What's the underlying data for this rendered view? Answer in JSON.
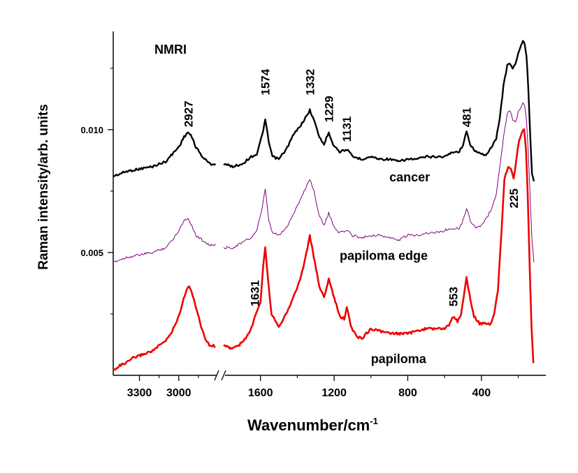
{
  "chart_data": {
    "type": "line",
    "title": "NMRI",
    "xlabel": "Wavenumber/cm",
    "xlabel_sup": "-1",
    "ylabel": "Raman intensity/arb. units",
    "axis_break": true,
    "x_reversed": true,
    "xlim_left": [
      3500,
      2700
    ],
    "xlim_right": [
      1800,
      50
    ],
    "ylim": [
      0.0,
      0.014
    ],
    "yticks": [
      {
        "value": 0.005,
        "label": "0.005"
      },
      {
        "value": 0.01,
        "label": "0.010"
      }
    ],
    "xticks": [
      {
        "value": 3300,
        "label": "3300"
      },
      {
        "value": 3000,
        "label": "3000"
      },
      {
        "value": 1600,
        "label": "1600"
      },
      {
        "value": 1200,
        "label": "1200"
      },
      {
        "value": 800,
        "label": "800"
      },
      {
        "value": 400,
        "label": "400"
      }
    ],
    "series": [
      {
        "name": "cancer",
        "color": "#000000",
        "points": [
          [
            3500,
            0.0081
          ],
          [
            3400,
            0.0083
          ],
          [
            3300,
            0.0084
          ],
          [
            3200,
            0.0085
          ],
          [
            3100,
            0.0087
          ],
          [
            3050,
            0.009
          ],
          [
            3000,
            0.0093
          ],
          [
            2960,
            0.0097
          ],
          [
            2930,
            0.0099
          ],
          [
            2900,
            0.0097
          ],
          [
            2870,
            0.0093
          ],
          [
            2820,
            0.0089
          ],
          [
            2760,
            0.0086
          ],
          [
            2720,
            0.0086
          ],
          [
            1800,
            0.0086
          ],
          [
            1750,
            0.0085
          ],
          [
            1700,
            0.0086
          ],
          [
            1650,
            0.0089
          ],
          [
            1620,
            0.009
          ],
          [
            1590,
            0.0098
          ],
          [
            1574,
            0.0104
          ],
          [
            1555,
            0.0095
          ],
          [
            1535,
            0.0089
          ],
          [
            1500,
            0.0088
          ],
          [
            1460,
            0.0092
          ],
          [
            1420,
            0.0098
          ],
          [
            1380,
            0.0102
          ],
          [
            1345,
            0.0106
          ],
          [
            1332,
            0.0108
          ],
          [
            1310,
            0.0104
          ],
          [
            1280,
            0.0097
          ],
          [
            1255,
            0.0094
          ],
          [
            1229,
            0.0099
          ],
          [
            1205,
            0.0094
          ],
          [
            1170,
            0.0091
          ],
          [
            1131,
            0.0092
          ],
          [
            1100,
            0.0089
          ],
          [
            1050,
            0.0088
          ],
          [
            1000,
            0.0089
          ],
          [
            950,
            0.0088
          ],
          [
            900,
            0.0088
          ],
          [
            850,
            0.0087
          ],
          [
            800,
            0.0088
          ],
          [
            750,
            0.0088
          ],
          [
            700,
            0.0089
          ],
          [
            650,
            0.0089
          ],
          [
            600,
            0.0089
          ],
          [
            553,
            0.0091
          ],
          [
            520,
            0.0091
          ],
          [
            500,
            0.0094
          ],
          [
            481,
            0.0099
          ],
          [
            460,
            0.0094
          ],
          [
            430,
            0.0091
          ],
          [
            400,
            0.009
          ],
          [
            370,
            0.009
          ],
          [
            345,
            0.0093
          ],
          [
            320,
            0.0096
          ],
          [
            300,
            0.0105
          ],
          [
            280,
            0.0118
          ],
          [
            260,
            0.0126
          ],
          [
            245,
            0.0127
          ],
          [
            230,
            0.0125
          ],
          [
            215,
            0.0127
          ],
          [
            200,
            0.0131
          ],
          [
            185,
            0.0134
          ],
          [
            175,
            0.0136
          ],
          [
            165,
            0.0135
          ],
          [
            155,
            0.013
          ],
          [
            145,
            0.0116
          ],
          [
            135,
            0.0098
          ],
          [
            125,
            0.0082
          ],
          [
            115,
            0.0079
          ]
        ]
      },
      {
        "name": "papiloma edge",
        "color": "#800080",
        "points": [
          [
            3500,
            0.0046
          ],
          [
            3400,
            0.0048
          ],
          [
            3300,
            0.0049
          ],
          [
            3200,
            0.005
          ],
          [
            3100,
            0.0052
          ],
          [
            3050,
            0.0055
          ],
          [
            3000,
            0.0059
          ],
          [
            2960,
            0.0063
          ],
          [
            2930,
            0.0064
          ],
          [
            2900,
            0.0061
          ],
          [
            2870,
            0.0057
          ],
          [
            2820,
            0.0055
          ],
          [
            2760,
            0.0053
          ],
          [
            2720,
            0.0053
          ],
          [
            1800,
            0.0052
          ],
          [
            1750,
            0.0052
          ],
          [
            1700,
            0.0054
          ],
          [
            1650,
            0.0056
          ],
          [
            1620,
            0.0059
          ],
          [
            1590,
            0.0068
          ],
          [
            1574,
            0.0076
          ],
          [
            1555,
            0.0063
          ],
          [
            1535,
            0.0058
          ],
          [
            1500,
            0.0057
          ],
          [
            1460,
            0.006
          ],
          [
            1420,
            0.0066
          ],
          [
            1380,
            0.0072
          ],
          [
            1345,
            0.0078
          ],
          [
            1332,
            0.008
          ],
          [
            1310,
            0.0075
          ],
          [
            1280,
            0.0065
          ],
          [
            1255,
            0.0061
          ],
          [
            1229,
            0.0066
          ],
          [
            1205,
            0.0061
          ],
          [
            1170,
            0.0058
          ],
          [
            1131,
            0.0059
          ],
          [
            1100,
            0.0057
          ],
          [
            1050,
            0.0056
          ],
          [
            1000,
            0.0057
          ],
          [
            950,
            0.0057
          ],
          [
            900,
            0.0056
          ],
          [
            850,
            0.0055
          ],
          [
            800,
            0.0057
          ],
          [
            750,
            0.0057
          ],
          [
            700,
            0.0058
          ],
          [
            650,
            0.0058
          ],
          [
            600,
            0.0059
          ],
          [
            553,
            0.006
          ],
          [
            520,
            0.006
          ],
          [
            500,
            0.0063
          ],
          [
            481,
            0.0068
          ],
          [
            460,
            0.0063
          ],
          [
            430,
            0.006
          ],
          [
            400,
            0.0061
          ],
          [
            370,
            0.0064
          ],
          [
            345,
            0.0068
          ],
          [
            320,
            0.0073
          ],
          [
            300,
            0.0085
          ],
          [
            280,
            0.0097
          ],
          [
            260,
            0.0106
          ],
          [
            245,
            0.0108
          ],
          [
            230,
            0.0104
          ],
          [
            215,
            0.0103
          ],
          [
            200,
            0.0107
          ],
          [
            185,
            0.0109
          ],
          [
            175,
            0.0111
          ],
          [
            165,
            0.011
          ],
          [
            155,
            0.0104
          ],
          [
            145,
            0.009
          ],
          [
            135,
            0.0072
          ],
          [
            125,
            0.0055
          ],
          [
            115,
            0.0046
          ]
        ]
      },
      {
        "name": "papiloma",
        "color": "#ee0000",
        "points": [
          [
            3500,
            0.0002
          ],
          [
            3450,
            0.0004
          ],
          [
            3400,
            0.0005
          ],
          [
            3350,
            0.0007
          ],
          [
            3300,
            0.0008
          ],
          [
            3250,
            0.0009
          ],
          [
            3200,
            0.001
          ],
          [
            3150,
            0.0012
          ],
          [
            3100,
            0.0014
          ],
          [
            3050,
            0.0018
          ],
          [
            3000,
            0.0024
          ],
          [
            2970,
            0.003
          ],
          [
            2940,
            0.0035
          ],
          [
            2920,
            0.0036
          ],
          [
            2900,
            0.0034
          ],
          [
            2870,
            0.0028
          ],
          [
            2830,
            0.002
          ],
          [
            2790,
            0.0014
          ],
          [
            2760,
            0.0012
          ],
          [
            2720,
            0.0012
          ],
          [
            1800,
            0.0012
          ],
          [
            1760,
            0.0011
          ],
          [
            1720,
            0.0012
          ],
          [
            1680,
            0.0015
          ],
          [
            1650,
            0.0019
          ],
          [
            1631,
            0.0024
          ],
          [
            1600,
            0.003
          ],
          [
            1585,
            0.0045
          ],
          [
            1574,
            0.0052
          ],
          [
            1560,
            0.004
          ],
          [
            1540,
            0.0025
          ],
          [
            1500,
            0.002
          ],
          [
            1460,
            0.0025
          ],
          [
            1420,
            0.0032
          ],
          [
            1380,
            0.004
          ],
          [
            1350,
            0.005
          ],
          [
            1332,
            0.0057
          ],
          [
            1310,
            0.0048
          ],
          [
            1280,
            0.0036
          ],
          [
            1255,
            0.0032
          ],
          [
            1229,
            0.0039
          ],
          [
            1205,
            0.0033
          ],
          [
            1170,
            0.0024
          ],
          [
            1145,
            0.0023
          ],
          [
            1131,
            0.0028
          ],
          [
            1110,
            0.002
          ],
          [
            1080,
            0.0016
          ],
          [
            1050,
            0.0015
          ],
          [
            1000,
            0.0019
          ],
          [
            950,
            0.0018
          ],
          [
            900,
            0.0017
          ],
          [
            850,
            0.0017
          ],
          [
            800,
            0.0017
          ],
          [
            750,
            0.0018
          ],
          [
            700,
            0.0019
          ],
          [
            650,
            0.0019
          ],
          [
            600,
            0.0019
          ],
          [
            570,
            0.0021
          ],
          [
            553,
            0.0024
          ],
          [
            530,
            0.0022
          ],
          [
            510,
            0.0025
          ],
          [
            481,
            0.004
          ],
          [
            465,
            0.0033
          ],
          [
            440,
            0.0024
          ],
          [
            410,
            0.0021
          ],
          [
            380,
            0.0021
          ],
          [
            350,
            0.0021
          ],
          [
            330,
            0.0025
          ],
          [
            310,
            0.0035
          ],
          [
            290,
            0.006
          ],
          [
            275,
            0.008
          ],
          [
            255,
            0.0085
          ],
          [
            240,
            0.0084
          ],
          [
            225,
            0.008
          ],
          [
            210,
            0.0088
          ],
          [
            195,
            0.0096
          ],
          [
            180,
            0.0099
          ],
          [
            168,
            0.01
          ],
          [
            158,
            0.0092
          ],
          [
            148,
            0.0072
          ],
          [
            138,
            0.0045
          ],
          [
            128,
            0.002
          ],
          [
            118,
            0.0005
          ]
        ]
      }
    ],
    "annotations": [
      {
        "text": "2927",
        "x": 2927,
        "y": 0.0101
      },
      {
        "text": "1574",
        "x": 1574,
        "y": 0.0114
      },
      {
        "text": "1332",
        "x": 1332,
        "y": 0.0114
      },
      {
        "text": "1229",
        "x": 1229,
        "y": 0.0103
      },
      {
        "text": "1131",
        "x": 1131,
        "y": 0.0095
      },
      {
        "text": "481",
        "x": 481,
        "y": 0.0101
      },
      {
        "text": "225",
        "x": 225,
        "y": 0.0068
      },
      {
        "text": "1631",
        "x": 1631,
        "y": 0.0028
      },
      {
        "text": "553",
        "x": 553,
        "y": 0.0028
      }
    ],
    "series_labels": [
      {
        "text": "cancer",
        "x": 900,
        "y": 0.0079
      },
      {
        "text": "papiloma edge",
        "x": 1170,
        "y": 0.0047
      },
      {
        "text": "papiloma",
        "x": 1000,
        "y": 0.0005
      }
    ]
  }
}
